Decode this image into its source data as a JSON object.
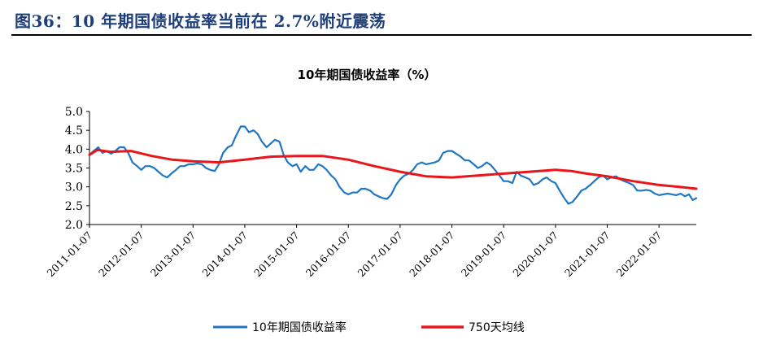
{
  "header": {
    "title": "图36：10 年期国债收益率当前在 2.7%附近震荡"
  },
  "chart_data": {
    "type": "line",
    "title": "10年期国债收益率（%）",
    "xlabel": "",
    "ylabel": "",
    "ylim": [
      2.0,
      5.0
    ],
    "yticks": [
      "5.0",
      "4.5",
      "4.0",
      "3.5",
      "3.0",
      "2.5",
      "2.0"
    ],
    "xticks": [
      "2011-01-07",
      "2012-01-07",
      "2013-01-07",
      "2014-01-07",
      "2015-01-07",
      "2016-01-07",
      "2017-01-07",
      "2018-01-07",
      "2019-01-07",
      "2020-01-07",
      "2021-01-07",
      "2022-01-07"
    ],
    "x_start": 2011.0,
    "x_end": 2022.72,
    "grid": false,
    "legend_position": "bottom",
    "series": [
      {
        "name": "10年期国债收益率",
        "color": "#1f77c4",
        "points": [
          [
            2011.0,
            3.85
          ],
          [
            2011.08,
            3.95
          ],
          [
            2011.17,
            4.05
          ],
          [
            2011.25,
            3.9
          ],
          [
            2011.33,
            3.95
          ],
          [
            2011.42,
            3.88
          ],
          [
            2011.5,
            3.95
          ],
          [
            2011.58,
            4.05
          ],
          [
            2011.67,
            4.05
          ],
          [
            2011.75,
            3.9
          ],
          [
            2011.83,
            3.65
          ],
          [
            2011.92,
            3.55
          ],
          [
            2012.0,
            3.45
          ],
          [
            2012.08,
            3.55
          ],
          [
            2012.17,
            3.55
          ],
          [
            2012.25,
            3.5
          ],
          [
            2012.33,
            3.4
          ],
          [
            2012.42,
            3.3
          ],
          [
            2012.5,
            3.25
          ],
          [
            2012.58,
            3.35
          ],
          [
            2012.67,
            3.45
          ],
          [
            2012.75,
            3.55
          ],
          [
            2012.83,
            3.55
          ],
          [
            2012.92,
            3.6
          ],
          [
            2013.0,
            3.6
          ],
          [
            2013.08,
            3.62
          ],
          [
            2013.17,
            3.6
          ],
          [
            2013.25,
            3.5
          ],
          [
            2013.33,
            3.45
          ],
          [
            2013.42,
            3.42
          ],
          [
            2013.5,
            3.6
          ],
          [
            2013.58,
            3.9
          ],
          [
            2013.67,
            4.05
          ],
          [
            2013.75,
            4.1
          ],
          [
            2013.83,
            4.35
          ],
          [
            2013.92,
            4.6
          ],
          [
            2014.0,
            4.6
          ],
          [
            2014.08,
            4.45
          ],
          [
            2014.17,
            4.5
          ],
          [
            2014.25,
            4.4
          ],
          [
            2014.33,
            4.2
          ],
          [
            2014.42,
            4.05
          ],
          [
            2014.5,
            4.15
          ],
          [
            2014.58,
            4.25
          ],
          [
            2014.67,
            4.2
          ],
          [
            2014.75,
            3.85
          ],
          [
            2014.83,
            3.65
          ],
          [
            2014.92,
            3.55
          ],
          [
            2015.0,
            3.6
          ],
          [
            2015.08,
            3.4
          ],
          [
            2015.17,
            3.55
          ],
          [
            2015.25,
            3.45
          ],
          [
            2015.33,
            3.45
          ],
          [
            2015.42,
            3.6
          ],
          [
            2015.5,
            3.55
          ],
          [
            2015.58,
            3.45
          ],
          [
            2015.67,
            3.3
          ],
          [
            2015.75,
            3.2
          ],
          [
            2015.83,
            3.0
          ],
          [
            2015.92,
            2.85
          ],
          [
            2016.0,
            2.8
          ],
          [
            2016.08,
            2.85
          ],
          [
            2016.17,
            2.85
          ],
          [
            2016.25,
            2.95
          ],
          [
            2016.33,
            2.95
          ],
          [
            2016.42,
            2.9
          ],
          [
            2016.5,
            2.8
          ],
          [
            2016.58,
            2.75
          ],
          [
            2016.67,
            2.7
          ],
          [
            2016.75,
            2.68
          ],
          [
            2016.83,
            2.8
          ],
          [
            2016.92,
            3.05
          ],
          [
            2017.0,
            3.2
          ],
          [
            2017.08,
            3.3
          ],
          [
            2017.17,
            3.35
          ],
          [
            2017.25,
            3.45
          ],
          [
            2017.33,
            3.6
          ],
          [
            2017.42,
            3.65
          ],
          [
            2017.5,
            3.6
          ],
          [
            2017.58,
            3.62
          ],
          [
            2017.67,
            3.65
          ],
          [
            2017.75,
            3.7
          ],
          [
            2017.83,
            3.9
          ],
          [
            2017.92,
            3.95
          ],
          [
            2018.0,
            3.95
          ],
          [
            2018.08,
            3.88
          ],
          [
            2018.17,
            3.8
          ],
          [
            2018.25,
            3.7
          ],
          [
            2018.33,
            3.7
          ],
          [
            2018.42,
            3.6
          ],
          [
            2018.5,
            3.5
          ],
          [
            2018.58,
            3.55
          ],
          [
            2018.67,
            3.65
          ],
          [
            2018.75,
            3.58
          ],
          [
            2018.83,
            3.45
          ],
          [
            2018.92,
            3.3
          ],
          [
            2019.0,
            3.15
          ],
          [
            2019.08,
            3.15
          ],
          [
            2019.17,
            3.1
          ],
          [
            2019.25,
            3.4
          ],
          [
            2019.33,
            3.3
          ],
          [
            2019.42,
            3.25
          ],
          [
            2019.5,
            3.2
          ],
          [
            2019.58,
            3.05
          ],
          [
            2019.67,
            3.1
          ],
          [
            2019.75,
            3.2
          ],
          [
            2019.83,
            3.25
          ],
          [
            2019.92,
            3.15
          ],
          [
            2020.0,
            3.1
          ],
          [
            2020.08,
            2.9
          ],
          [
            2020.17,
            2.7
          ],
          [
            2020.25,
            2.55
          ],
          [
            2020.33,
            2.6
          ],
          [
            2020.42,
            2.75
          ],
          [
            2020.5,
            2.9
          ],
          [
            2020.58,
            2.95
          ],
          [
            2020.67,
            3.05
          ],
          [
            2020.75,
            3.15
          ],
          [
            2020.83,
            3.25
          ],
          [
            2020.92,
            3.3
          ],
          [
            2021.0,
            3.2
          ],
          [
            2021.08,
            3.25
          ],
          [
            2021.17,
            3.28
          ],
          [
            2021.25,
            3.2
          ],
          [
            2021.33,
            3.15
          ],
          [
            2021.42,
            3.1
          ],
          [
            2021.5,
            3.05
          ],
          [
            2021.58,
            2.9
          ],
          [
            2021.67,
            2.9
          ],
          [
            2021.75,
            2.92
          ],
          [
            2021.83,
            2.9
          ],
          [
            2021.92,
            2.82
          ],
          [
            2022.0,
            2.78
          ],
          [
            2022.08,
            2.8
          ],
          [
            2022.17,
            2.82
          ],
          [
            2022.25,
            2.8
          ],
          [
            2022.33,
            2.78
          ],
          [
            2022.42,
            2.82
          ],
          [
            2022.5,
            2.75
          ],
          [
            2022.58,
            2.8
          ],
          [
            2022.65,
            2.65
          ],
          [
            2022.72,
            2.7
          ]
        ]
      },
      {
        "name": "750天均线",
        "color": "#e8151b",
        "points": [
          [
            2011.0,
            3.85
          ],
          [
            2011.15,
            3.98
          ],
          [
            2011.4,
            3.93
          ],
          [
            2011.8,
            3.95
          ],
          [
            2012.2,
            3.82
          ],
          [
            2012.6,
            3.72
          ],
          [
            2013.0,
            3.68
          ],
          [
            2013.5,
            3.65
          ],
          [
            2014.0,
            3.72
          ],
          [
            2014.5,
            3.8
          ],
          [
            2015.0,
            3.82
          ],
          [
            2015.5,
            3.82
          ],
          [
            2016.0,
            3.72
          ],
          [
            2016.5,
            3.55
          ],
          [
            2017.0,
            3.4
          ],
          [
            2017.5,
            3.28
          ],
          [
            2018.0,
            3.25
          ],
          [
            2018.5,
            3.3
          ],
          [
            2019.0,
            3.35
          ],
          [
            2019.5,
            3.4
          ],
          [
            2020.0,
            3.45
          ],
          [
            2020.3,
            3.42
          ],
          [
            2020.6,
            3.35
          ],
          [
            2021.0,
            3.28
          ],
          [
            2021.5,
            3.15
          ],
          [
            2022.0,
            3.05
          ],
          [
            2022.4,
            3.0
          ],
          [
            2022.72,
            2.95
          ]
        ]
      }
    ]
  }
}
